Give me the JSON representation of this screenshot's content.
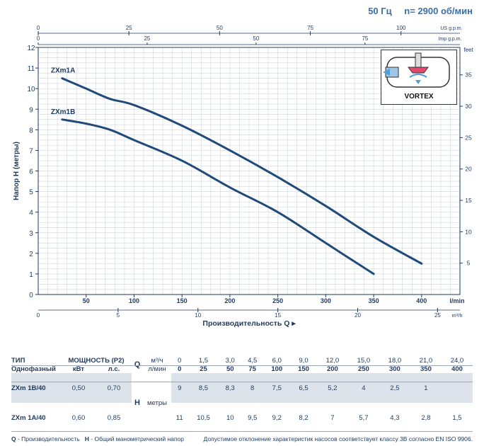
{
  "header": {
    "freq": "50 Гц",
    "speed": "n= 2900 об/мин"
  },
  "chart_data": {
    "type": "line",
    "ylabel": "Напор H (метры)",
    "xlabel": "Производительность Q",
    "x_unit_main": "l/min",
    "x_unit_m3": "m³/h",
    "x_unit_usgpm": "US g.p.m.",
    "x_unit_impgpm": "Imp g.p.m.",
    "y_unit_right": "feet",
    "xlim": [
      0,
      440
    ],
    "ylim": [
      0,
      12
    ],
    "x_ticks_lmin": [
      50,
      100,
      150,
      200,
      250,
      300,
      350,
      400
    ],
    "x_ticks_m3h": [
      5,
      10,
      15,
      20,
      25
    ],
    "x_ticks_usgpm": [
      0,
      25,
      50,
      75,
      100
    ],
    "x_ticks_impgpm": [
      0,
      25,
      50,
      75
    ],
    "y_ticks": [
      0,
      1,
      2,
      3,
      4,
      5,
      6,
      7,
      8,
      9,
      10,
      11,
      12
    ],
    "y_ticks_feet": [
      5,
      10,
      15,
      20,
      25,
      30,
      35
    ],
    "series": [
      {
        "name": "ZXm1A",
        "color": "#1f4a7a",
        "x": [
          25,
          50,
          75,
          100,
          150,
          200,
          250,
          300,
          350,
          400
        ],
        "y": [
          10.5,
          10.0,
          9.5,
          9.2,
          8.2,
          7.0,
          5.7,
          4.3,
          2.8,
          1.5
        ]
      },
      {
        "name": "ZXm1B",
        "color": "#1f4a7a",
        "x": [
          25,
          50,
          75,
          100,
          150,
          200,
          250,
          300,
          350
        ],
        "y": [
          8.5,
          8.3,
          8.0,
          7.5,
          6.5,
          5.2,
          4.0,
          2.5,
          1.0
        ]
      }
    ],
    "inset_label": "VORTEX"
  },
  "table": {
    "h_type": "ТИП",
    "h_power": "МОЩНОСТЬ (P2)",
    "h_phase": "Однофазный",
    "h_kw": "кВт",
    "h_hp": "л.с.",
    "q_label": "Q",
    "q_unit_m3": "м³/ч",
    "q_unit_lmin": "л/мин",
    "h_label": "H",
    "h_unit": "метры",
    "q_m3": [
      "0",
      "1,5",
      "3,0",
      "4,5",
      "6,0",
      "9,0",
      "12,0",
      "15,0",
      "18,0",
      "21,0",
      "24,0"
    ],
    "q_lmin": [
      "0",
      "25",
      "50",
      "75",
      "100",
      "150",
      "200",
      "250",
      "300",
      "350",
      "400"
    ],
    "rows": [
      {
        "model": "ZXm 1B/40",
        "kw": "0,50",
        "hp": "0,70",
        "h": [
          "9",
          "8,5",
          "8,3",
          "8",
          "7,5",
          "6,5",
          "5,2",
          "4",
          "2,5",
          "1",
          ""
        ]
      },
      {
        "model": "ZXm 1A/40",
        "kw": "0,60",
        "hp": "0,85",
        "h": [
          "11",
          "10,5",
          "10",
          "9,5",
          "9,2",
          "8,2",
          "7",
          "5,7",
          "4,3",
          "2,8",
          "1,5"
        ]
      }
    ]
  },
  "footer": {
    "left_q": "Q",
    "left_q_desc": " - Производительность",
    "left_h": "H",
    "left_h_desc": " - Общий манометрический напор",
    "right": "Допустимое отклонение характеристик насосов соответствует классу 3B согласно EN ISO 9906."
  }
}
